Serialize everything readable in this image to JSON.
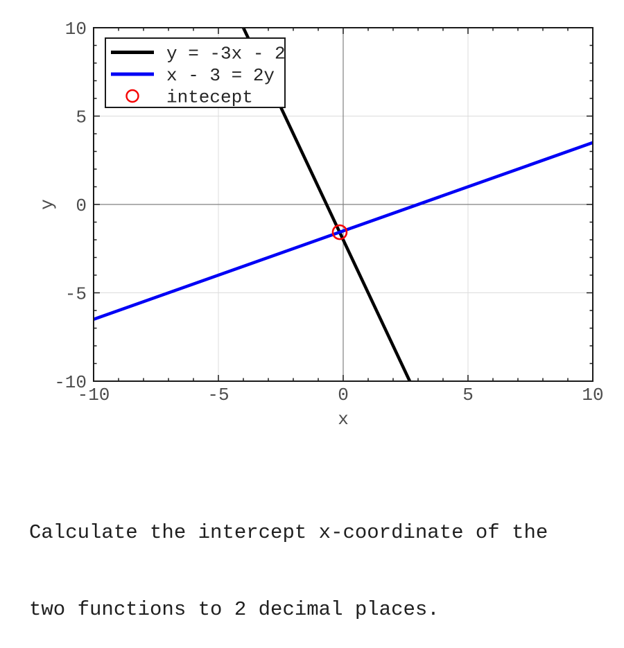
{
  "chart_data": {
    "type": "line",
    "title": "",
    "xlabel": "x",
    "ylabel": "y",
    "xlim": [
      -10,
      10
    ],
    "ylim": [
      -10,
      10
    ],
    "major_tick_step": 5,
    "minor_tick_step": 1,
    "grid": true,
    "grid_color": "#dcdcdc",
    "zero_axis_color": "#808080",
    "axis_box_color": "#1a1a1a",
    "x_tick_labels": [
      "-10",
      "-5",
      "0",
      "5",
      "10"
    ],
    "y_tick_labels": [
      "-10",
      "-5",
      "0",
      "5",
      "10"
    ],
    "series": [
      {
        "name": "y = -3x - 2",
        "color": "#000000",
        "points": [
          [
            -4,
            10
          ],
          [
            2.6667,
            -10
          ]
        ]
      },
      {
        "name": "x - 3 = 2y",
        "color": "#0000f5",
        "points": [
          [
            -10,
            -6.5
          ],
          [
            10,
            3.5
          ]
        ]
      }
    ],
    "markers": [
      {
        "name": "intecept",
        "shape": "circle",
        "color": "#f50505",
        "x": -0.14,
        "y": -1.57
      }
    ],
    "legend_position": "top-left"
  },
  "question": {
    "lines": [
      "Calculate the intercept x-coordinate of the",
      "two functions to 2 decimal places."
    ]
  }
}
